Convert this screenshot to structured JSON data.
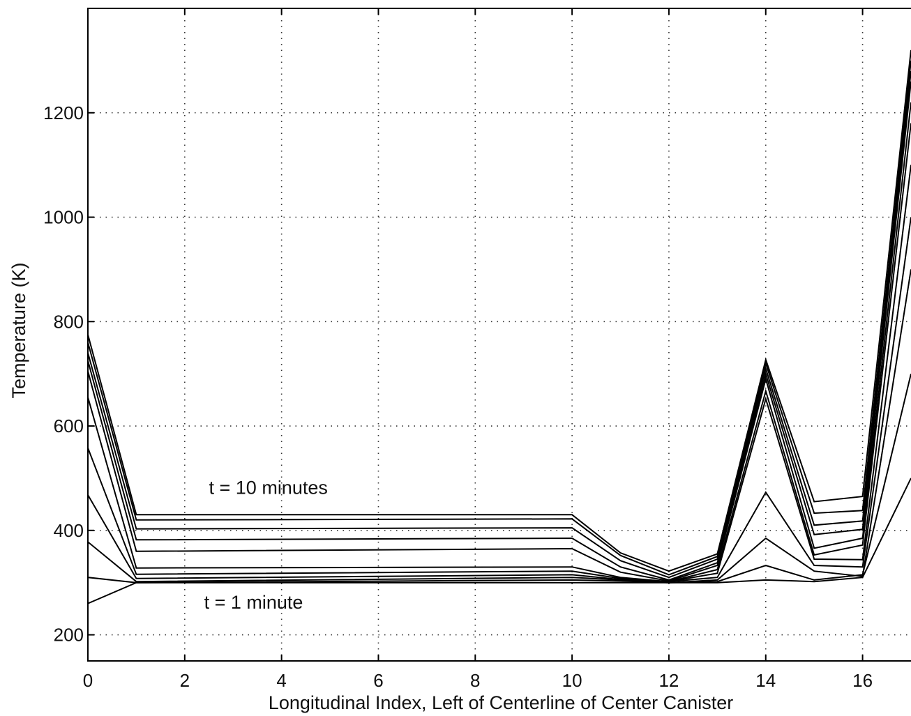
{
  "chart_data": {
    "type": "line",
    "title": "",
    "xlabel": "Longitudinal Index, Left of Centerline of Center Canister",
    "ylabel": "Temperature (K)",
    "xlim": [
      0,
      17
    ],
    "ylim": [
      150,
      1400
    ],
    "xticks": [
      0,
      2,
      4,
      6,
      8,
      10,
      12,
      14,
      16
    ],
    "yticks": [
      200,
      400,
      600,
      800,
      1000,
      1200
    ],
    "grid": true,
    "x": [
      0,
      1,
      10,
      11,
      12,
      13,
      14,
      15,
      16,
      17
    ],
    "series": [
      {
        "values": [
          260,
          300,
          300,
          300,
          300,
          300,
          305,
          302,
          310,
          500
        ]
      },
      {
        "values": [
          310,
          300,
          305,
          303,
          300,
          302,
          333,
          305,
          315,
          700
        ]
      },
      {
        "values": [
          378,
          302,
          310,
          305,
          300,
          305,
          385,
          322,
          312,
          900
        ]
      },
      {
        "values": [
          468,
          308,
          315,
          306,
          302,
          310,
          473,
          333,
          330,
          1000
        ]
      },
      {
        "values": [
          558,
          316,
          322,
          308,
          302,
          318,
          652,
          345,
          344,
          1100
        ]
      },
      {
        "values": [
          655,
          328,
          330,
          310,
          302,
          325,
          667,
          353,
          372,
          1180
        ]
      },
      {
        "values": [
          705,
          360,
          365,
          320,
          303,
          333,
          690,
          366,
          385,
          1220
        ]
      },
      {
        "values": [
          725,
          382,
          385,
          330,
          305,
          338,
          700,
          392,
          402,
          1260
        ]
      },
      {
        "values": [
          740,
          403,
          405,
          342,
          310,
          345,
          710,
          410,
          418,
          1280
        ]
      },
      {
        "values": [
          760,
          420,
          422,
          352,
          315,
          350,
          720,
          433,
          438,
          1300
        ]
      },
      {
        "values": [
          775,
          430,
          430,
          357,
          322,
          355,
          727,
          455,
          465,
          1320
        ]
      }
    ],
    "annotations": [
      {
        "text": "t = 10 minutes",
        "x": 2.5,
        "y": 470
      },
      {
        "text": "t = 1 minute",
        "x": 2.4,
        "y": 250
      }
    ]
  }
}
